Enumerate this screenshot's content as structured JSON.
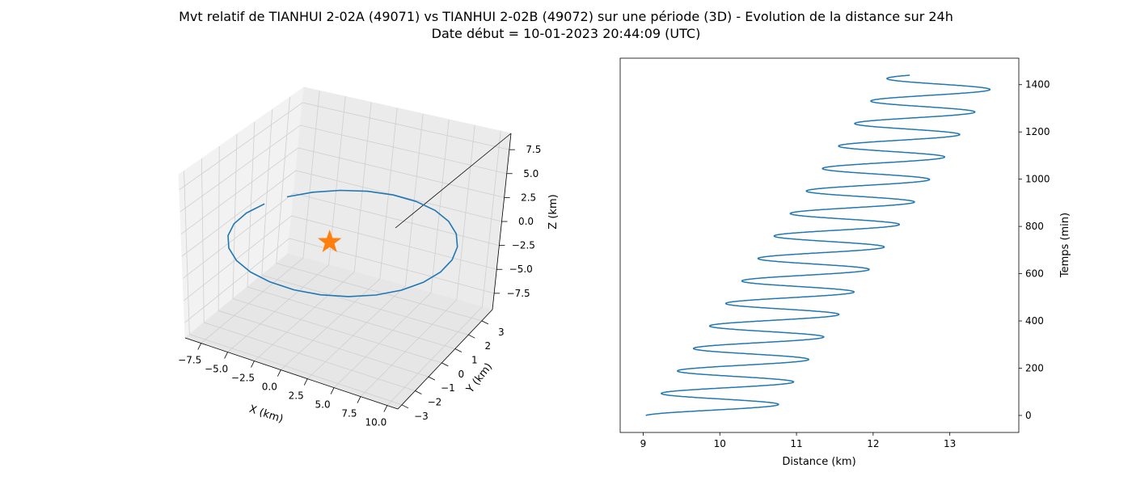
{
  "figure": {
    "title_line1": "Mvt relatif de TIANHUI 2-02A (49071) vs TIANHUI 2-02B (49072) sur une période (3D) - Evolution de la distance sur 24h",
    "title_line2": "Date début = 10-01-2023 20:44:09 (UTC)"
  },
  "chart_data": [
    {
      "type": "line3d",
      "title": "",
      "xlabel": "X (km)",
      "ylabel": "Y (km)",
      "zlabel": "Z (km)",
      "xticks": [
        -7.5,
        -5.0,
        -2.5,
        0.0,
        2.5,
        5.0,
        7.5,
        10.0
      ],
      "yticks": [
        -3,
        -2,
        -1,
        0,
        1,
        2,
        3
      ],
      "zticks": [
        -7.5,
        -5.0,
        -2.5,
        0.0,
        2.5,
        5.0,
        7.5
      ],
      "xlim": [
        -9,
        11
      ],
      "ylim": [
        -3.3,
        3.8
      ],
      "zlim": [
        -9.2,
        9.2
      ],
      "grid": true,
      "series": [
        {
          "kind": "line",
          "color": "#1f77b4",
          "description": "relative orbit ellipse of TIANHUI 2-02B around TIANHUI 2-02A",
          "ellipse": {
            "x_amplitude": 9.8,
            "x_offset": 1.0,
            "y_amplitude": 3.3,
            "y_offset": 0.2,
            "z_amplitude": 0.6,
            "points": 26
          }
        },
        {
          "kind": "marker",
          "marker": "star",
          "color": "#ff7f0e",
          "x": 0,
          "y": 0,
          "z": 0
        }
      ]
    },
    {
      "type": "line",
      "title": "",
      "xlabel": "Distance (km)",
      "ylabel": "Temps (min)",
      "xticks": [
        9,
        10,
        11,
        12,
        13
      ],
      "yticks": [
        0,
        200,
        400,
        600,
        800,
        1000,
        1200,
        1400
      ],
      "xlim": [
        8.7,
        13.9
      ],
      "ylim": [
        -72,
        1512
      ],
      "y_axis_side": "right",
      "grid": false,
      "series": [
        {
          "color": "#1f77b4",
          "model": {
            "t_start": 0,
            "t_end": 1440,
            "period_min": 95.2,
            "center_start": 9.85,
            "center_end": 12.93,
            "amplitude_start": 0.82,
            "amplitude_end": 0.72,
            "phase": 0.1
          }
        }
      ]
    }
  ]
}
